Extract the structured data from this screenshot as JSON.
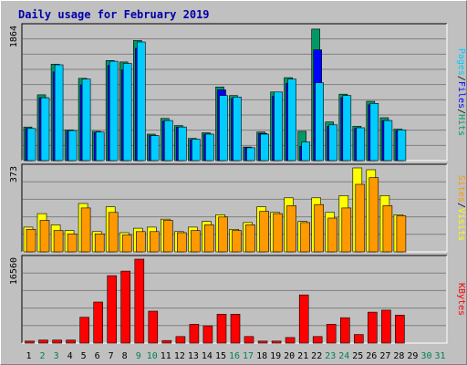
{
  "chart_data": {
    "type": "bar",
    "title": "Daily usage for February 2019",
    "categories": [
      "1",
      "2",
      "3",
      "4",
      "5",
      "6",
      "7",
      "8",
      "9",
      "10",
      "11",
      "12",
      "13",
      "14",
      "15",
      "16",
      "17",
      "18",
      "19",
      "20",
      "21",
      "22",
      "23",
      "24",
      "25",
      "26",
      "27",
      "28",
      "29",
      "30",
      "31"
    ],
    "weekend_days": [
      2,
      3,
      9,
      10,
      16,
      17,
      23,
      24,
      30,
      31
    ],
    "panels": [
      {
        "id": "hits",
        "max_label": "1864",
        "max": 1864,
        "series": [
          {
            "name": "Hits",
            "color": "#009966",
            "values": [
              470,
              920,
              1350,
              430,
              1150,
              410,
              1400,
              1380,
              1680,
              370,
              590,
              490,
              310,
              390,
              1030,
              910,
              190,
              400,
              960,
              1160,
              410,
              1840,
              540,
              930,
              480,
              830,
              600,
              440,
              0,
              0,
              0
            ]
          },
          {
            "name": "Files",
            "color": "#0000ff",
            "values": [
              450,
              880,
              1240,
              410,
              1060,
              390,
              1330,
              1270,
              1570,
              350,
              550,
              470,
              290,
              370,
              990,
              870,
              180,
              380,
              900,
              1080,
              200,
              1550,
              480,
              880,
              450,
              780,
              560,
              420,
              0,
              0,
              0
            ]
          },
          {
            "name": "Pages",
            "color": "#00ccff",
            "values": [
              450,
              880,
              1340,
              420,
              1140,
              400,
              1390,
              1360,
              1660,
              350,
              560,
              470,
              300,
              370,
              910,
              890,
              180,
              370,
              960,
              1140,
              260,
              1090,
              500,
              910,
              460,
              800,
              560,
              430,
              0,
              0,
              0
            ]
          }
        ],
        "legend_colors": {
          "Pages": "#00ccff",
          "Files": "#0000ff",
          "Hits": "#009966"
        }
      },
      {
        "id": "visits",
        "max_label": "373",
        "max": 373,
        "series": [
          {
            "name": "Visits",
            "color": "#ffff00",
            "values": [
              110,
              170,
              120,
              95,
              215,
              90,
              200,
              85,
              105,
              110,
              145,
              90,
              110,
              135,
              165,
              100,
              130,
              200,
              175,
              240,
              135,
              240,
              175,
              250,
              373,
              365,
              250,
              165,
              0,
              0,
              0
            ]
          },
          {
            "name": "Sites",
            "color": "#ff9900",
            "values": [
              100,
              140,
              95,
              80,
              195,
              80,
              175,
              75,
              90,
              90,
              140,
              85,
              95,
              120,
              155,
              95,
              120,
              180,
              170,
              205,
              130,
              210,
              150,
              195,
              300,
              330,
              205,
              160,
              0,
              0,
              0
            ]
          }
        ],
        "legend_colors": {
          "Visits": "#ffff00",
          "Sites": "#ff9900"
        }
      },
      {
        "id": "kbytes",
        "max_label": "16560",
        "max": 16560,
        "series": [
          {
            "name": "KBytes",
            "color": "#ff0000",
            "values": [
              400,
              600,
              600,
              600,
              5100,
              8100,
              13300,
              14200,
              16560,
              6300,
              500,
              1300,
              3700,
              3400,
              5700,
              5700,
              1300,
              400,
              400,
              1100,
              9500,
              1300,
              3700,
              5000,
              1700,
              6100,
              6500,
              5500,
              0,
              0,
              0
            ]
          }
        ],
        "legend_colors": {
          "KBytes": "#ff0000"
        }
      }
    ],
    "axis_label_colors": {
      "weekday": "#000000",
      "weekend": "#00805a"
    },
    "grid": true
  }
}
